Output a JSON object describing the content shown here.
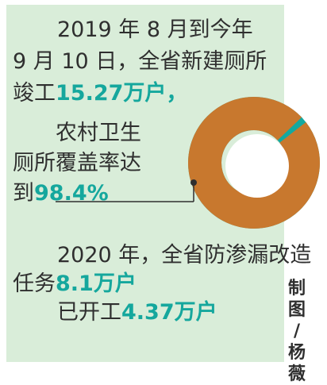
{
  "block1": {
    "line1": "2019 年 8 月到今年",
    "line2": "9 月 10 日，全省新建厕所",
    "line3_pre": "竣工",
    "line3_num": "15.27",
    "line3_unit": "万户，"
  },
  "block2": {
    "line1": "农村卫生",
    "line2": "厕所覆盖率达",
    "line3_pre": "到",
    "line3_num": "98.4%"
  },
  "block3": {
    "line1": "2020 年，全省防渗漏改造",
    "line2_pre": "任务",
    "line2_num": "8.1",
    "line2_unit": "万户",
    "line3_pre": "已开工",
    "line3_num": "4.37",
    "line3_unit": "万户"
  },
  "credit": [
    "制",
    "图",
    "/",
    "杨",
    "薇"
  ],
  "donut": {
    "covered_percent": 98.4,
    "covered_color": "#c8782e",
    "remaining_color": "#13a9a0",
    "inner_color": "#ffffff"
  },
  "colors": {
    "panel": "#d9edd9",
    "text": "#2f2f2f",
    "highlight": "#15a79d"
  }
}
